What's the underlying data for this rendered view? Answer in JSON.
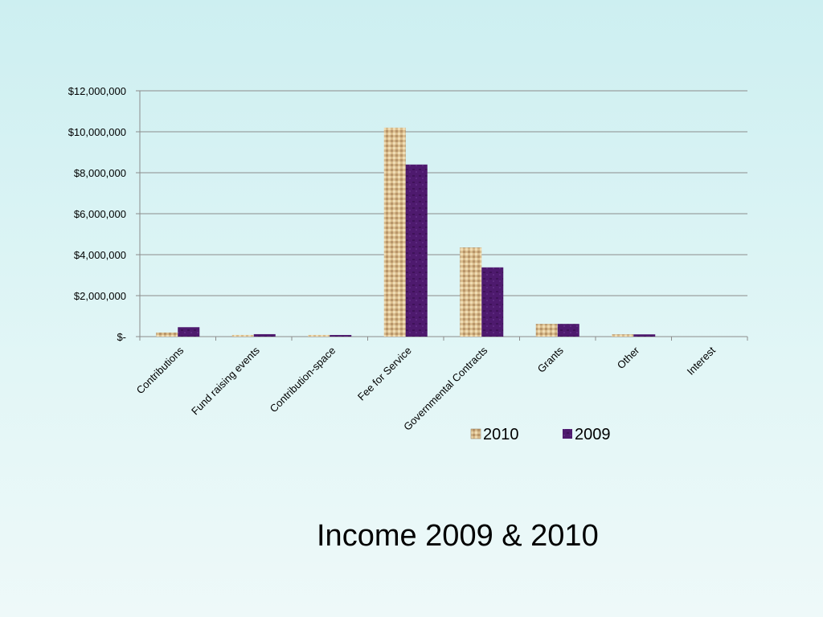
{
  "slide": {
    "title": "Income 2009 & 2010"
  },
  "colors": {
    "series_2010": "#c9a97a",
    "series_2009": "#4e1a6e",
    "gridline": "#8c8c8c"
  },
  "chart_data": {
    "type": "bar",
    "categories": [
      "Contributions",
      "Fund raising events",
      "Contribution-space",
      "Fee for Service",
      "Governmental Contracts",
      "Grants",
      "Other",
      "Interest"
    ],
    "series": [
      {
        "name": "2010",
        "values": [
          200000,
          80000,
          80000,
          10200000,
          4350000,
          620000,
          110000,
          0
        ]
      },
      {
        "name": "2009",
        "values": [
          460000,
          120000,
          80000,
          8400000,
          3380000,
          620000,
          110000,
          0
        ]
      }
    ],
    "y_ticks": [
      {
        "value": 0,
        "label": "$-"
      },
      {
        "value": 2000000,
        "label": "$2,000,000"
      },
      {
        "value": 4000000,
        "label": "$4,000,000"
      },
      {
        "value": 6000000,
        "label": "$6,000,000"
      },
      {
        "value": 8000000,
        "label": "$8,000,000"
      },
      {
        "value": 10000000,
        "label": "$10,000,000"
      },
      {
        "value": 12000000,
        "label": "$12,000,000"
      }
    ],
    "ylim": [
      0,
      12000000
    ],
    "grid": true,
    "legend": "bottom-right"
  }
}
